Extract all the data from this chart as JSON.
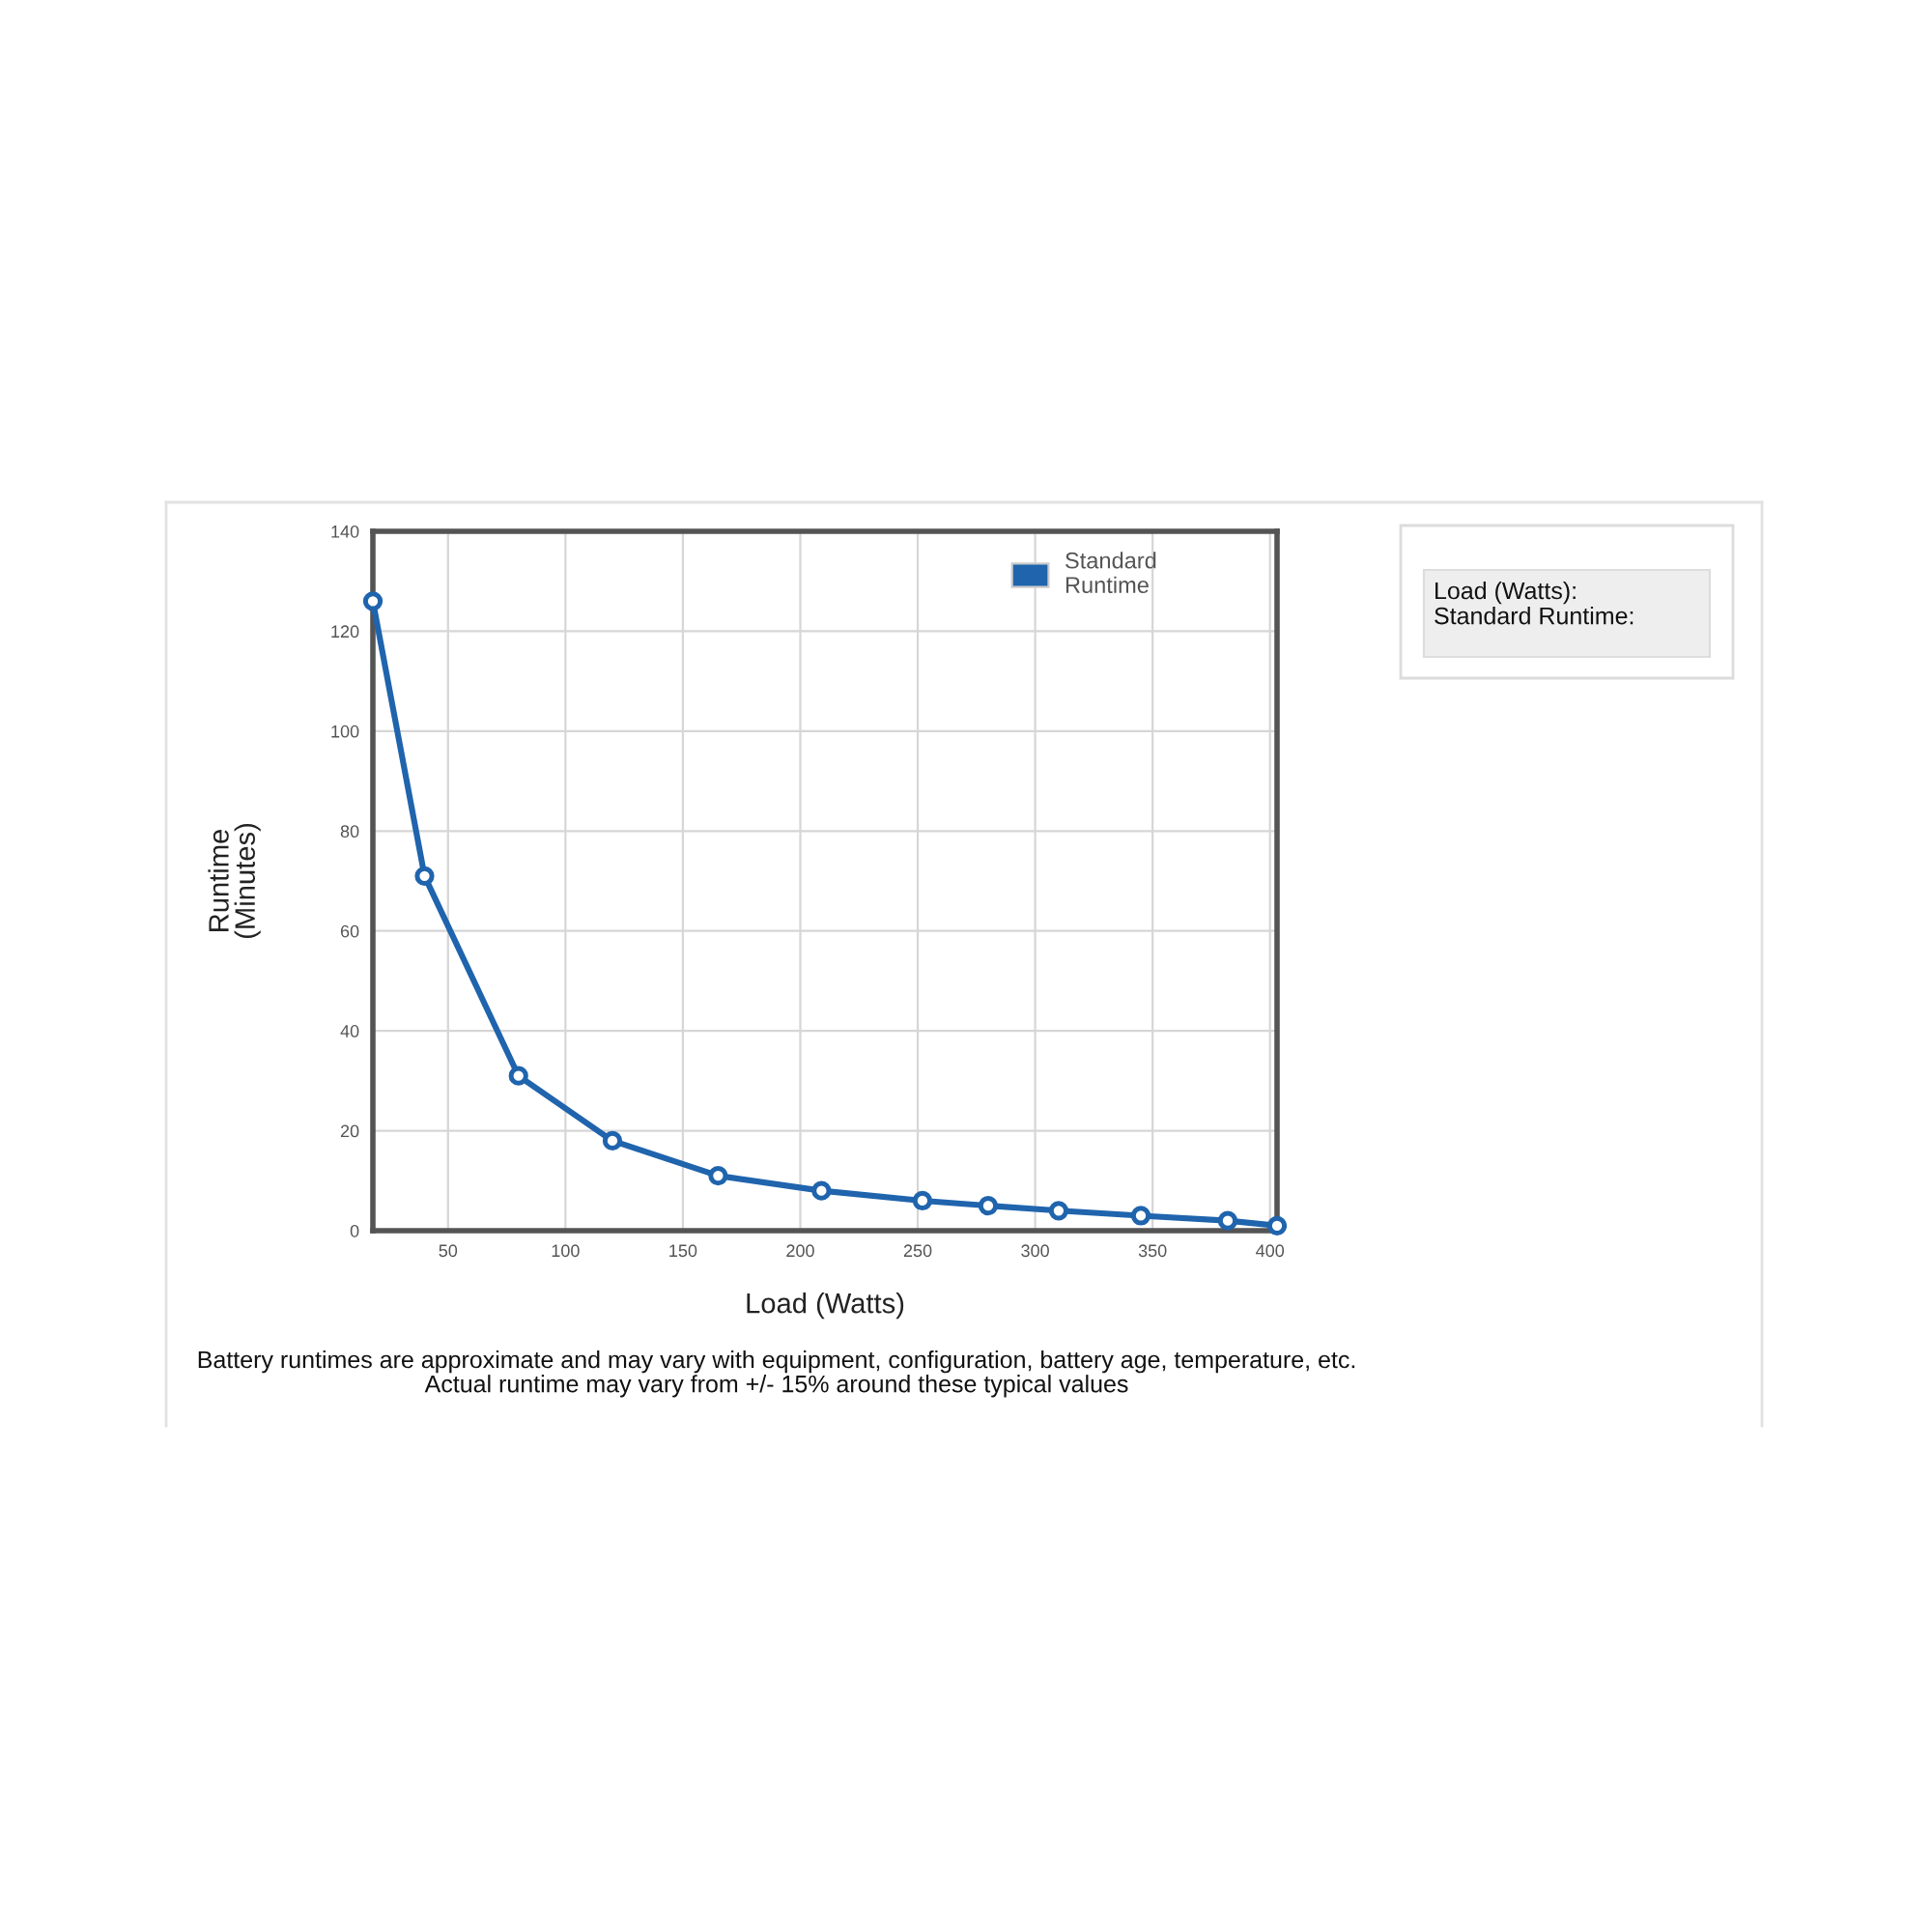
{
  "chart_data": {
    "type": "line",
    "xlabel": "Load (Watts)",
    "ylabel": "Runtime\n(Minutes)",
    "x": [
      18,
      40,
      80,
      120,
      165,
      209,
      252,
      280,
      310,
      345,
      382,
      403
    ],
    "series": [
      {
        "name": "Standard Runtime",
        "color": "#1f64ad",
        "values": [
          126,
          71,
          31,
          18,
          11,
          8,
          6,
          5,
          4,
          3,
          2,
          1
        ]
      }
    ],
    "xlim": [
      18,
      403
    ],
    "ylim": [
      0,
      140
    ],
    "xticks": [
      50,
      100,
      150,
      200,
      250,
      300,
      350,
      400
    ],
    "yticks": [
      0,
      20,
      40,
      60,
      80,
      100,
      120,
      140
    ],
    "grid": true,
    "legend": "top right",
    "marker": "circle",
    "line_style": "solid",
    "annotations": [
      "Battery runtimes are approximate and may vary with equipment, configuration, battery age, temperature, etc.\nActual runtime may vary from +/- 15% around these typical values",
      "Load (Watts):\nStandard Runtime:"
    ]
  }
}
